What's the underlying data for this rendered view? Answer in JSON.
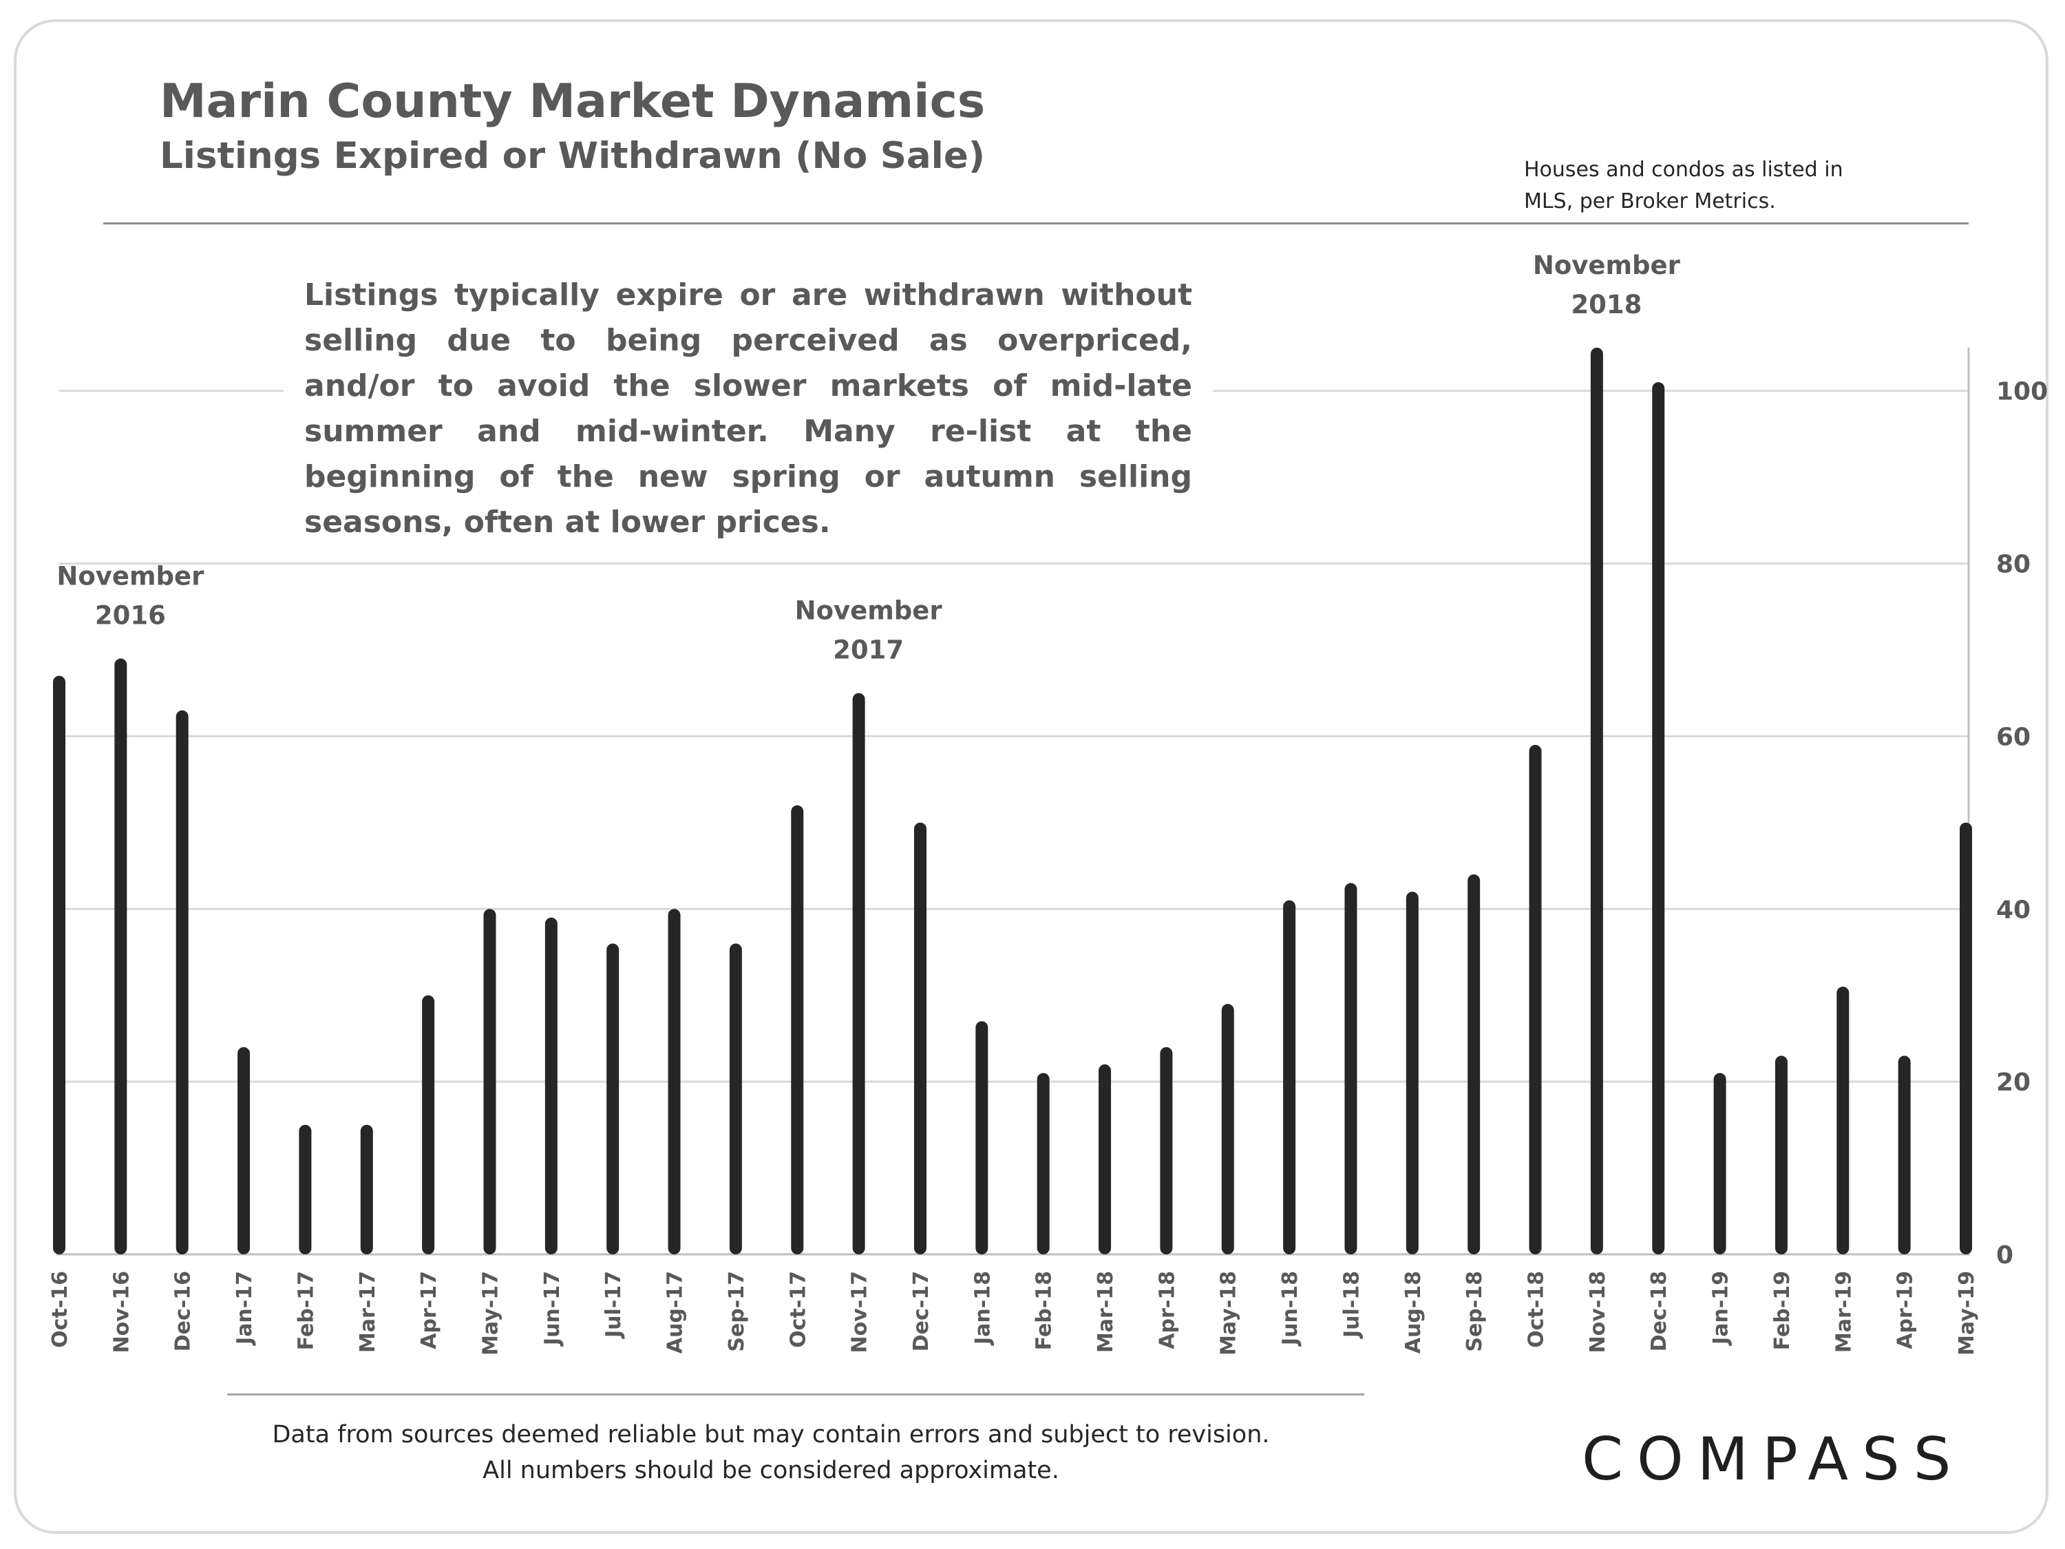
{
  "header": {
    "title": "Marin County Market Dynamics",
    "subtitle": "Listings Expired or Withdrawn (No Sale)",
    "source_note_line1": "Houses and condos as listed in",
    "source_note_line2": "MLS, per Broker Metrics."
  },
  "callout": {
    "text": "Listings typically expire or are withdrawn without selling due to being perceived as overpriced, and/or to avoid the slower markets of mid-late summer and mid-winter. Many re-list at the beginning of the new spring or autumn selling seasons, often at lower prices."
  },
  "footer": {
    "line1": "Data from sources deemed reliable but may contain errors and subject to revision.",
    "line2": "All numbers should be considered approximate."
  },
  "logo": {
    "text": "COMPASS"
  },
  "colors": {
    "bar": "#262626",
    "grid": "#d9d9d9",
    "text": "#595959"
  },
  "chart_data": {
    "type": "bar",
    "title": "Listings Expired or Withdrawn (No Sale)",
    "categories": [
      "Oct-16",
      "Nov-16",
      "Dec-16",
      "Jan-17",
      "Feb-17",
      "Mar-17",
      "Apr-17",
      "May-17",
      "Jun-17",
      "Jul-17",
      "Aug-17",
      "Sep-17",
      "Oct-17",
      "Nov-17",
      "Dec-17",
      "Jan-18",
      "Feb-18",
      "Mar-18",
      "Apr-18",
      "May-18",
      "Jun-18",
      "Jul-18",
      "Aug-18",
      "Sep-18",
      "Oct-18",
      "Nov-18",
      "Dec-18",
      "Jan-19",
      "Feb-19",
      "Mar-19",
      "Apr-19",
      "May-19"
    ],
    "values": [
      67,
      69,
      63,
      24,
      15,
      15,
      30,
      40,
      39,
      36,
      40,
      36,
      52,
      65,
      50,
      27,
      21,
      22,
      24,
      29,
      41,
      43,
      42,
      44,
      59,
      105,
      101,
      21,
      23,
      31,
      23,
      50
    ],
    "ylim": [
      0,
      105
    ],
    "yticks": [
      0,
      20,
      40,
      60,
      80,
      100
    ],
    "y_axis_side": "right",
    "grid": true,
    "annotations": [
      {
        "category": "Nov-16",
        "line1": "November",
        "line2": "2016"
      },
      {
        "category": "Nov-17",
        "line1": "November",
        "line2": "2017"
      },
      {
        "category": "Nov-18",
        "line1": "November",
        "line2": "2018"
      }
    ]
  }
}
